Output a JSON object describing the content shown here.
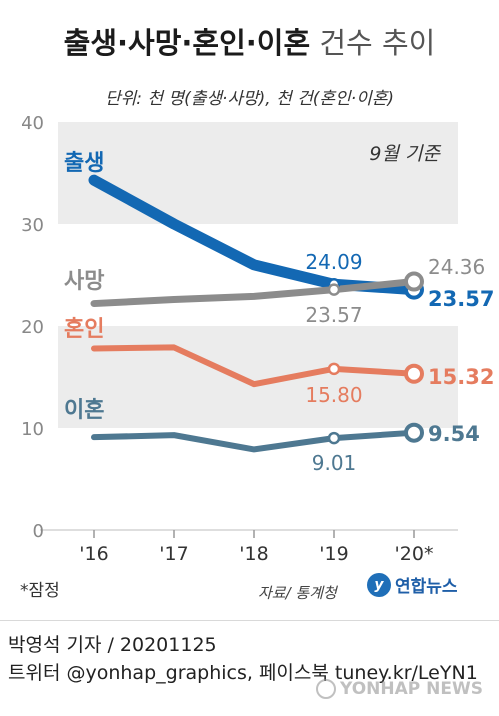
{
  "title": {
    "bold": "출생·사망·혼인·이혼",
    "light": "건수 추이"
  },
  "unit": "단위: 천 명(출생·사망), 천 건(혼인·이혼)",
  "annotation": "9월 기준",
  "footnote": "*잠정",
  "source": "자료/ 통계청",
  "logo": {
    "mark": "y",
    "name": "연합뉴스"
  },
  "reporter": "박영석 기자 /  20201125",
  "twitter": "트위터 @yonhap_graphics, 페이스북 tuney.kr/LeYN1",
  "watermark": "YONHAP NEWS",
  "colors": {
    "birth": "#1368b3",
    "death": "#8c8c8c",
    "marriage": "#e57c5f",
    "divorce": "#4e7891",
    "band": "#ececec"
  },
  "chart_data": {
    "type": "line",
    "categories": [
      "'16",
      "'17",
      "'18",
      "'19",
      "'20*"
    ],
    "ylim": [
      0,
      40
    ],
    "yticks": [
      0,
      10,
      20,
      30,
      40
    ],
    "series": [
      {
        "name": "출생",
        "key": "birth",
        "values": [
          34.3,
          30.0,
          26.0,
          24.09,
          23.57
        ],
        "labels": {
          "3": "24.09",
          "4": "23.57"
        }
      },
      {
        "name": "사망",
        "key": "death",
        "values": [
          22.2,
          22.6,
          22.9,
          23.57,
          24.36
        ],
        "labels": {
          "3": "23.57",
          "4": "24.36"
        }
      },
      {
        "name": "혼인",
        "key": "marriage",
        "values": [
          17.8,
          17.9,
          14.3,
          15.8,
          15.32
        ],
        "labels": {
          "3": "15.80",
          "4": "15.32"
        }
      },
      {
        "name": "이혼",
        "key": "divorce",
        "values": [
          9.1,
          9.3,
          7.9,
          9.01,
          9.54
        ],
        "labels": {
          "3": "9.01",
          "4": "9.54"
        }
      }
    ]
  }
}
